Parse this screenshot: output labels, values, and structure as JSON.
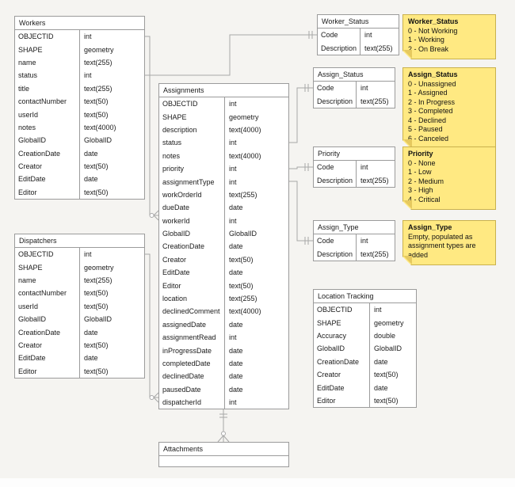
{
  "colors": {
    "canvas_bg": "#f5f4f1",
    "table_border": "#9b9b9b",
    "line": "#a8a8a8",
    "note_fill": "#ffe982",
    "note_border": "#c9b14e",
    "note_fold": "#e6c95f"
  },
  "tables": {
    "workers": {
      "title": "Workers",
      "fields": [
        [
          "OBJECTID",
          "int"
        ],
        [
          "SHAPE",
          "geometry"
        ],
        [
          "name",
          "text(255)"
        ],
        [
          "status",
          "int"
        ],
        [
          "title",
          "text(255)"
        ],
        [
          "contactNumber",
          "text(50)"
        ],
        [
          "userId",
          "text(50)"
        ],
        [
          "notes",
          "text(4000)"
        ],
        [
          "GlobalID",
          "GlobalID"
        ],
        [
          "CreationDate",
          "date"
        ],
        [
          "Creator",
          "text(50)"
        ],
        [
          "EditDate",
          "date"
        ],
        [
          "Editor",
          "text(50)"
        ]
      ]
    },
    "dispatchers": {
      "title": "Dispatchers",
      "fields": [
        [
          "OBJECTID",
          "int"
        ],
        [
          "SHAPE",
          "geometry"
        ],
        [
          "name",
          "text(255)"
        ],
        [
          "contactNumber",
          "text(50)"
        ],
        [
          "userId",
          "text(50)"
        ],
        [
          "GlobalID",
          "GlobalID"
        ],
        [
          "CreationDate",
          "date"
        ],
        [
          "Creator",
          "text(50)"
        ],
        [
          "EditDate",
          "date"
        ],
        [
          "Editor",
          "text(50)"
        ]
      ]
    },
    "assignments": {
      "title": "Assignments",
      "fields": [
        [
          "OBJECTID",
          "int"
        ],
        [
          "SHAPE",
          "geometry"
        ],
        [
          "description",
          "text(4000)"
        ],
        [
          "status",
          "int"
        ],
        [
          "notes",
          "text(4000)"
        ],
        [
          "priority",
          "int"
        ],
        [
          "assignmentType",
          "int"
        ],
        [
          "workOrderId",
          "text(255)"
        ],
        [
          "dueDate",
          "date"
        ],
        [
          "workerId",
          "int"
        ],
        [
          "GlobalID",
          "GlobalID"
        ],
        [
          "CreationDate",
          "date"
        ],
        [
          "Creator",
          "text(50)"
        ],
        [
          "EditDate",
          "date"
        ],
        [
          "Editor",
          "text(50)"
        ],
        [
          "location",
          "text(255)"
        ],
        [
          "declinedComment",
          "text(4000)"
        ],
        [
          "assignedDate",
          "date"
        ],
        [
          "assignmentRead",
          "int"
        ],
        [
          "inProgressDate",
          "date"
        ],
        [
          "completedDate",
          "date"
        ],
        [
          "declinedDate",
          "date"
        ],
        [
          "pausedDate",
          "date"
        ],
        [
          "dispatcherId",
          "int"
        ]
      ]
    },
    "worker_status": {
      "title": "Worker_Status",
      "fields": [
        [
          "Code",
          "int"
        ],
        [
          "Description",
          "text(255)"
        ]
      ]
    },
    "assign_status": {
      "title": "Assign_Status",
      "fields": [
        [
          "Code",
          "int"
        ],
        [
          "Description",
          "text(255)"
        ]
      ]
    },
    "priority": {
      "title": "Priority",
      "fields": [
        [
          "Code",
          "int"
        ],
        [
          "Description",
          "text(255)"
        ]
      ]
    },
    "assign_type": {
      "title": "Assign_Type",
      "fields": [
        [
          "Code",
          "int"
        ],
        [
          "Description",
          "text(255)"
        ]
      ]
    },
    "location_tracking": {
      "title": "Location Tracking",
      "fields": [
        [
          "OBJECTID",
          "int"
        ],
        [
          "SHAPE",
          "geometry"
        ],
        [
          "Accuracy",
          "double"
        ],
        [
          "GlobalID",
          "GlobalID"
        ],
        [
          "CreationDate",
          "date"
        ],
        [
          "Creator",
          "text(50)"
        ],
        [
          "EditDate",
          "date"
        ],
        [
          "Editor",
          "text(50)"
        ]
      ]
    },
    "attachments": {
      "title": "Attachments",
      "fields": []
    }
  },
  "notes": {
    "worker_status": {
      "lines": [
        "Worker_Status",
        "0 - Not Working",
        "1 - Working",
        "2 - On Break"
      ]
    },
    "assign_status": {
      "lines": [
        "Assign_Status",
        "0 - Unassigned",
        "1 - Assigned",
        "2 - In Progress",
        "3 - Completed",
        "4 - Declined",
        "5 - Paused",
        "6 - Canceled"
      ]
    },
    "priority": {
      "lines": [
        "Priority",
        "0 - None",
        "1 - Low",
        "2 - Medium",
        "3 - High",
        "4 - Critical"
      ]
    },
    "assign_type": {
      "lines": [
        "Assign_Type",
        "Empty, populated as",
        "assignment types are added"
      ]
    }
  }
}
